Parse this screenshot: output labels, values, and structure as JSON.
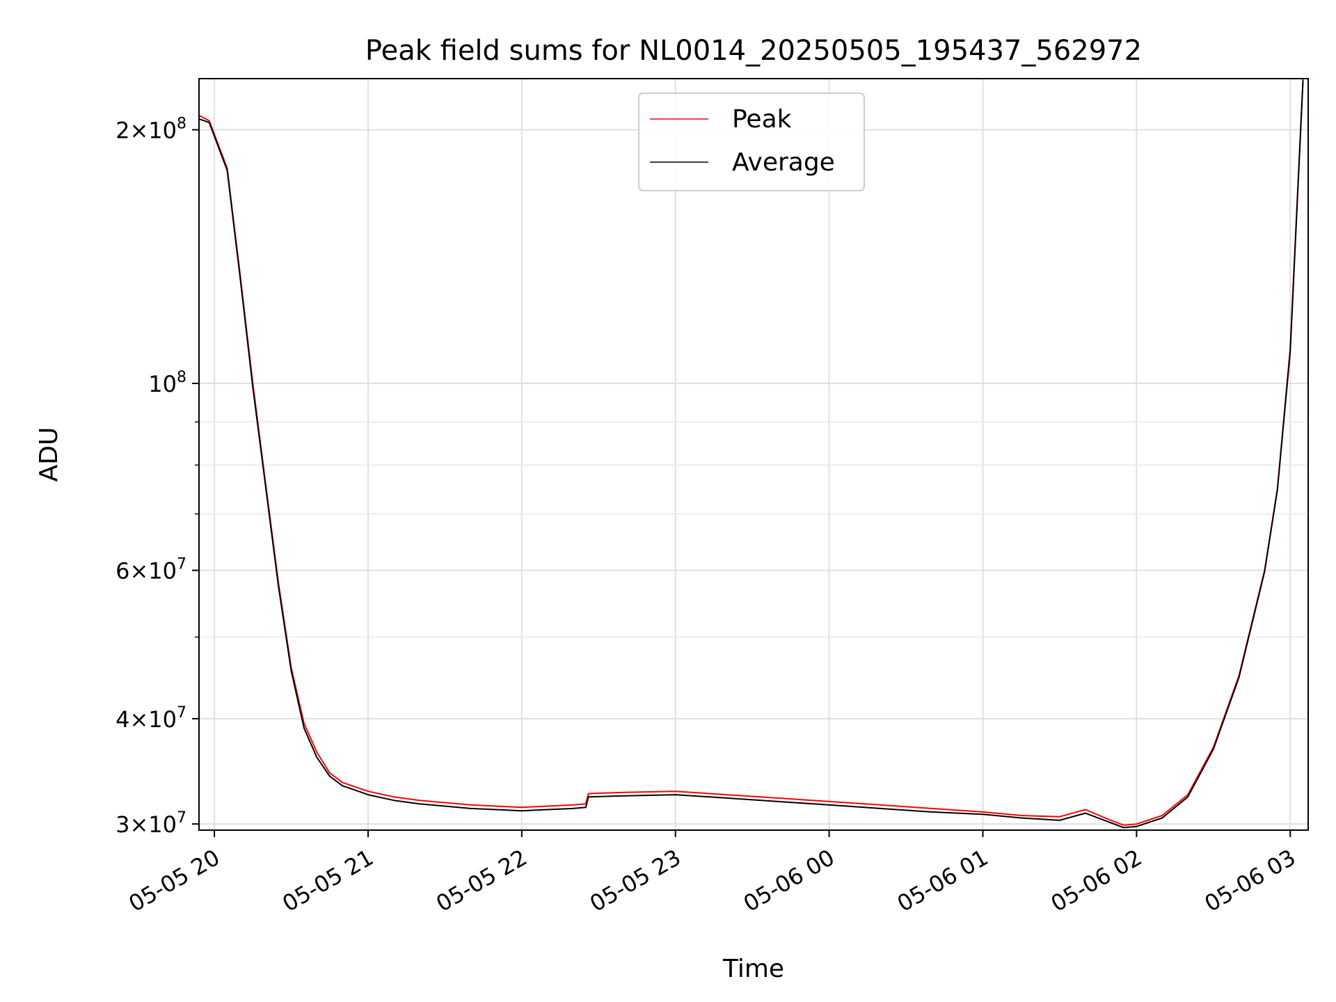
{
  "chart_data": {
    "type": "line",
    "title": "Peak field sums for NL0014_20250505_195437_562972",
    "xlabel": "Time",
    "ylabel": "ADU",
    "yscale": "log",
    "grid": true,
    "legend_position": "top-center",
    "xlim": [
      "2025-05-05T19:54",
      "2025-05-06T03:07"
    ],
    "ylim": [
      29500000,
      230000000
    ],
    "xticks": [
      "2025-05-05T20:00",
      "2025-05-05T21:00",
      "2025-05-05T22:00",
      "2025-05-05T23:00",
      "2025-05-06T00:00",
      "2025-05-06T01:00",
      "2025-05-06T02:00",
      "2025-05-06T03:00"
    ],
    "xtick_labels": [
      "05-05 20",
      "05-05 21",
      "05-05 22",
      "05-05 23",
      "05-06 00",
      "05-06 01",
      "05-06 02",
      "05-06 03"
    ],
    "yticks": [
      {
        "value": 30000000,
        "mantissa": "3",
        "exponent": "7"
      },
      {
        "value": 40000000,
        "mantissa": "4",
        "exponent": "7"
      },
      {
        "value": 60000000,
        "mantissa": "6",
        "exponent": "7"
      },
      {
        "value": 100000000,
        "mantissa": "",
        "exponent": "8"
      },
      {
        "value": 200000000,
        "mantissa": "2",
        "exponent": "8"
      }
    ],
    "y_minor_ticks": [
      50000000,
      70000000,
      80000000,
      90000000
    ],
    "series": [
      {
        "name": "Peak",
        "color": "#ff0000",
        "x": [
          "2025-05-05T19:54",
          "2025-05-05T19:58",
          "2025-05-05T20:05",
          "2025-05-05T20:10",
          "2025-05-05T20:15",
          "2025-05-05T20:20",
          "2025-05-05T20:25",
          "2025-05-05T20:30",
          "2025-05-05T20:35",
          "2025-05-05T20:40",
          "2025-05-05T20:45",
          "2025-05-05T20:50",
          "2025-05-05T20:55",
          "2025-05-05T21:00",
          "2025-05-05T21:10",
          "2025-05-05T21:20",
          "2025-05-05T21:30",
          "2025-05-05T21:40",
          "2025-05-05T21:50",
          "2025-05-05T22:00",
          "2025-05-05T22:10",
          "2025-05-05T22:20",
          "2025-05-05T22:25",
          "2025-05-05T22:26",
          "2025-05-05T22:40",
          "2025-05-05T23:00",
          "2025-05-05T23:20",
          "2025-05-05T23:40",
          "2025-05-06T00:00",
          "2025-05-06T00:20",
          "2025-05-06T00:40",
          "2025-05-06T01:00",
          "2025-05-06T01:15",
          "2025-05-06T01:30",
          "2025-05-06T01:40",
          "2025-05-06T01:50",
          "2025-05-06T01:55",
          "2025-05-06T02:00",
          "2025-05-06T02:10",
          "2025-05-06T02:20",
          "2025-05-06T02:30",
          "2025-05-06T02:40",
          "2025-05-06T02:50",
          "2025-05-06T02:55",
          "2025-05-06T03:00",
          "2025-05-06T03:05"
        ],
        "y": [
          208000000,
          205000000,
          180000000,
          135000000,
          100000000,
          76000000,
          58000000,
          46000000,
          39500000,
          36500000,
          34500000,
          33600000,
          33200000,
          32800000,
          32300000,
          32000000,
          31800000,
          31600000,
          31500000,
          31400000,
          31500000,
          31600000,
          31700000,
          32600000,
          32700000,
          32800000,
          32500000,
          32200000,
          31900000,
          31600000,
          31300000,
          31000000,
          30700000,
          30600000,
          31200000,
          30300000,
          29900000,
          30000000,
          30700000,
          32500000,
          37000000,
          45000000,
          60000000,
          75000000,
          110000000,
          230000000
        ]
      },
      {
        "name": "Average",
        "color": "#000000",
        "x": [
          "2025-05-05T19:54",
          "2025-05-05T19:58",
          "2025-05-05T20:05",
          "2025-05-05T20:10",
          "2025-05-05T20:15",
          "2025-05-05T20:20",
          "2025-05-05T20:25",
          "2025-05-05T20:30",
          "2025-05-05T20:35",
          "2025-05-05T20:40",
          "2025-05-05T20:45",
          "2025-05-05T20:50",
          "2025-05-05T20:55",
          "2025-05-05T21:00",
          "2025-05-05T21:10",
          "2025-05-05T21:20",
          "2025-05-05T21:30",
          "2025-05-05T21:40",
          "2025-05-05T21:50",
          "2025-05-05T22:00",
          "2025-05-05T22:10",
          "2025-05-05T22:20",
          "2025-05-05T22:25",
          "2025-05-05T22:26",
          "2025-05-05T22:40",
          "2025-05-05T23:00",
          "2025-05-05T23:20",
          "2025-05-05T23:40",
          "2025-05-06T00:00",
          "2025-05-06T00:20",
          "2025-05-06T00:40",
          "2025-05-06T01:00",
          "2025-05-06T01:15",
          "2025-05-06T01:30",
          "2025-05-06T01:40",
          "2025-05-06T01:50",
          "2025-05-06T01:55",
          "2025-05-06T02:00",
          "2025-05-06T02:10",
          "2025-05-06T02:20",
          "2025-05-06T02:30",
          "2025-05-06T02:40",
          "2025-05-06T02:50",
          "2025-05-06T02:55",
          "2025-05-06T03:00",
          "2025-05-06T03:05"
        ],
        "y": [
          206000000,
          204000000,
          179000000,
          134000000,
          99000000,
          75500000,
          57500000,
          45600000,
          39000000,
          36000000,
          34200000,
          33300000,
          32900000,
          32500000,
          32000000,
          31700000,
          31500000,
          31300000,
          31200000,
          31100000,
          31200000,
          31300000,
          31400000,
          32300000,
          32400000,
          32500000,
          32200000,
          31900000,
          31600000,
          31300000,
          31000000,
          30800000,
          30500000,
          30300000,
          30900000,
          30100000,
          29700000,
          29800000,
          30500000,
          32300000,
          36800000,
          44800000,
          59800000,
          74800000,
          109000000,
          229000000
        ]
      }
    ]
  }
}
